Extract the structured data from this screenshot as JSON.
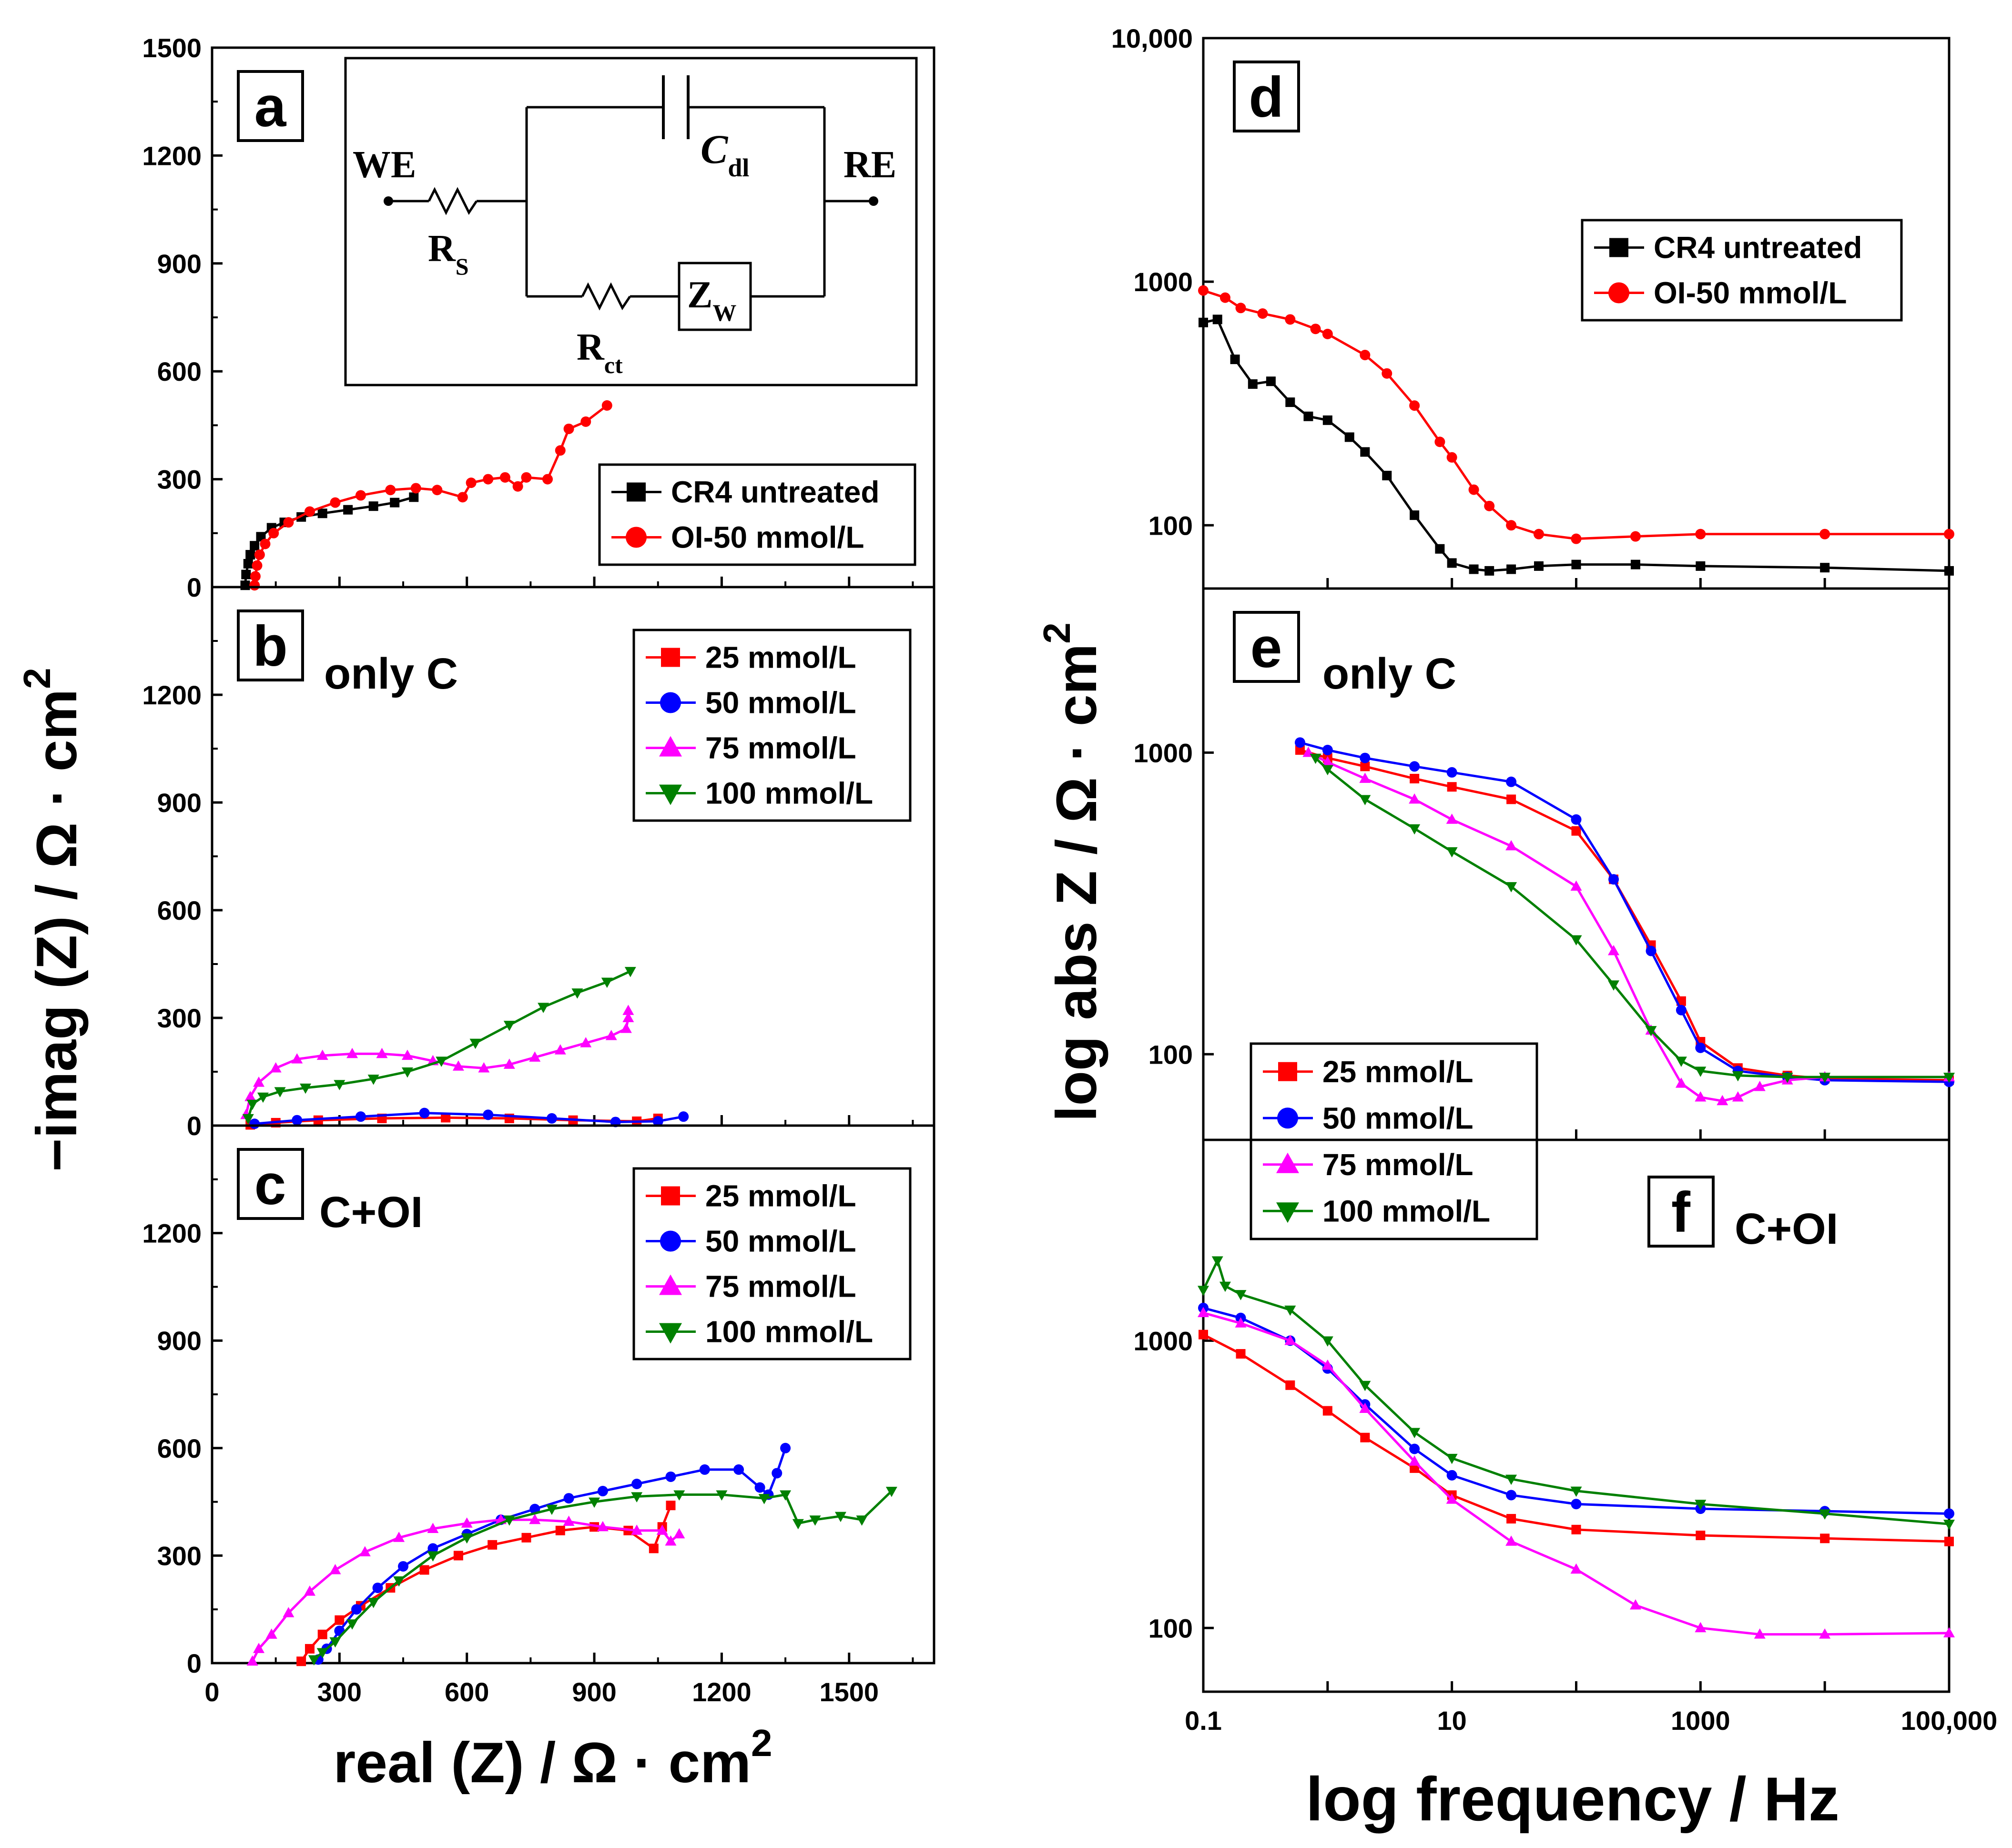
{
  "figure": {
    "left_xlabel_main": "real (Z) / Ω · cm",
    "left_xlabel_sup": "2",
    "left_ylabel_main": "−imag (Z) / Ω · cm",
    "left_ylabel_sup": "2",
    "right_xlabel": "log frequency / Hz",
    "right_ylabel_main": "log abs Z / Ω · cm",
    "right_ylabel_sup": "2"
  },
  "circuit": {
    "we": "WE",
    "re": "RE",
    "rs_main": "R",
    "rs_sub": "S",
    "cdl_main": "C",
    "cdl_sub": "dl",
    "rct_main": "R",
    "rct_sub": "ct",
    "zw_main": "Z",
    "zw_sub": "W"
  },
  "chart_data": [
    {
      "id": "a",
      "type": "scatter",
      "panel_label": "a",
      "subtitle": "",
      "xlim": [
        0,
        1700
      ],
      "ylim": [
        0,
        1500
      ],
      "yticks": [
        "0",
        "300",
        "600",
        "900",
        "1200",
        "1500"
      ],
      "legend": "right",
      "series": [
        {
          "name": "CR4 untreated",
          "color": "#000000",
          "marker": "square",
          "x": [
            78,
            80,
            85,
            90,
            100,
            115,
            140,
            170,
            210,
            260,
            320,
            380,
            430,
            475
          ],
          "y": [
            5,
            35,
            65,
            90,
            115,
            140,
            165,
            180,
            195,
            205,
            215,
            225,
            235,
            250
          ]
        },
        {
          "name": "OI-50 mmol/L",
          "color": "#ff0000",
          "marker": "circle",
          "x": [
            100,
            102,
            106,
            112,
            125,
            145,
            180,
            230,
            290,
            350,
            420,
            480,
            530,
            590,
            610,
            650,
            690,
            720,
            740,
            790,
            820,
            840,
            880,
            930
          ],
          "y": [
            5,
            30,
            60,
            90,
            120,
            150,
            180,
            210,
            235,
            255,
            270,
            275,
            270,
            250,
            290,
            300,
            305,
            280,
            305,
            300,
            380,
            440,
            460,
            505
          ]
        }
      ]
    },
    {
      "id": "b",
      "type": "scatter",
      "panel_label": "b",
      "subtitle": "only C",
      "xlim": [
        0,
        1700
      ],
      "ylim": [
        0,
        1500
      ],
      "yticks": [
        "0",
        "300",
        "600",
        "900",
        "1200"
      ],
      "legend": "right",
      "series": [
        {
          "name": "25 mmol/L",
          "color": "#ff0000",
          "marker": "square",
          "x": [
            90,
            150,
            250,
            400,
            550,
            700,
            850,
            1000,
            1050
          ],
          "y": [
            2,
            8,
            15,
            20,
            22,
            20,
            15,
            12,
            20
          ]
        },
        {
          "name": "50 mmol/L",
          "color": "#0000ff",
          "marker": "circle",
          "x": [
            100,
            200,
            350,
            500,
            650,
            800,
            950,
            1050,
            1110
          ],
          "y": [
            5,
            15,
            25,
            35,
            30,
            20,
            10,
            12,
            25
          ]
        },
        {
          "name": "75 mmol/L",
          "color": "#ff00ff",
          "marker": "triangle-up",
          "x": [
            80,
            90,
            110,
            150,
            200,
            260,
            330,
            400,
            460,
            520,
            580,
            640,
            700,
            760,
            820,
            880,
            940,
            975,
            980,
            980
          ],
          "y": [
            30,
            80,
            120,
            160,
            185,
            195,
            200,
            200,
            195,
            180,
            165,
            160,
            170,
            190,
            210,
            230,
            250,
            270,
            300,
            320
          ]
        },
        {
          "name": "100 mmol/L",
          "color": "#008000",
          "marker": "triangle-down",
          "x": [
            85,
            95,
            120,
            160,
            220,
            300,
            380,
            460,
            540,
            620,
            700,
            780,
            860,
            930,
            985
          ],
          "y": [
            20,
            60,
            80,
            95,
            105,
            115,
            130,
            150,
            180,
            230,
            280,
            330,
            370,
            400,
            430
          ]
        }
      ]
    },
    {
      "id": "c",
      "type": "scatter",
      "panel_label": "c",
      "subtitle": "C+OI",
      "xlim": [
        0,
        1700
      ],
      "ylim": [
        0,
        1500
      ],
      "yticks": [
        "0",
        "300",
        "600",
        "900",
        "1200"
      ],
      "xticks": [
        "0",
        "300",
        "600",
        "900",
        "1200",
        "1500"
      ],
      "legend": "right",
      "series": [
        {
          "name": "25 mmol/L",
          "color": "#ff0000",
          "marker": "square",
          "x": [
            210,
            230,
            260,
            300,
            350,
            420,
            500,
            580,
            660,
            740,
            820,
            900,
            980,
            1040,
            1060,
            1080
          ],
          "y": [
            5,
            40,
            80,
            120,
            160,
            210,
            260,
            300,
            330,
            350,
            370,
            380,
            370,
            320,
            380,
            440
          ]
        },
        {
          "name": "50 mmol/L",
          "color": "#0000ff",
          "marker": "circle",
          "x": [
            250,
            270,
            300,
            340,
            390,
            450,
            520,
            600,
            680,
            760,
            840,
            920,
            1000,
            1080,
            1160,
            1240,
            1290,
            1310,
            1330,
            1350
          ],
          "y": [
            10,
            40,
            90,
            150,
            210,
            270,
            320,
            360,
            400,
            430,
            460,
            480,
            500,
            520,
            540,
            540,
            490,
            470,
            530,
            600
          ]
        },
        {
          "name": "75 mmol/L",
          "color": "#ff00ff",
          "marker": "triangle-up",
          "x": [
            95,
            110,
            140,
            180,
            230,
            290,
            360,
            440,
            520,
            600,
            680,
            760,
            840,
            920,
            1000,
            1060,
            1080,
            1100
          ],
          "y": [
            5,
            40,
            80,
            140,
            200,
            260,
            310,
            350,
            375,
            390,
            400,
            400,
            395,
            380,
            370,
            370,
            340,
            360
          ]
        },
        {
          "name": "100 mmol/L",
          "color": "#008000",
          "marker": "triangle-down",
          "x": [
            240,
            260,
            290,
            330,
            380,
            440,
            520,
            600,
            700,
            800,
            900,
            1000,
            1100,
            1200,
            1300,
            1350,
            1380,
            1420,
            1480,
            1530,
            1600
          ],
          "y": [
            10,
            30,
            60,
            110,
            170,
            230,
            300,
            350,
            400,
            430,
            450,
            465,
            470,
            470,
            460,
            470,
            390,
            400,
            410,
            400,
            480
          ]
        }
      ]
    },
    {
      "id": "d",
      "type": "line",
      "panel_label": "d",
      "subtitle": "",
      "xscale": "log",
      "yscale": "log",
      "xlim": [
        0.1,
        100000
      ],
      "ylim": [
        55,
        10000
      ],
      "ytick_values": [
        100,
        1000,
        10000
      ],
      "ytick_labels": [
        "100",
        "1000",
        "10,000"
      ],
      "legend": "top-right",
      "series": [
        {
          "name": "CR4 untreated",
          "color": "#000000",
          "marker": "square",
          "x": [
            0.1,
            0.13,
            0.18,
            0.25,
            0.35,
            0.5,
            0.7,
            1,
            1.5,
            2,
            3,
            5,
            8,
            10,
            15,
            20,
            30,
            50,
            100,
            300,
            1000,
            10000,
            100000
          ],
          "y": [
            680,
            700,
            480,
            380,
            390,
            320,
            280,
            270,
            230,
            200,
            160,
            110,
            80,
            70,
            66,
            65,
            66,
            68,
            69,
            69,
            68,
            67,
            65
          ]
        },
        {
          "name": "OI-50 mmol/L",
          "color": "#ff0000",
          "marker": "circle",
          "x": [
            0.1,
            0.15,
            0.2,
            0.3,
            0.5,
            0.8,
            1,
            2,
            3,
            5,
            8,
            10,
            15,
            20,
            30,
            50,
            100,
            300,
            1000,
            10000,
            100000
          ],
          "y": [
            920,
            860,
            780,
            740,
            700,
            640,
            610,
            500,
            420,
            310,
            220,
            190,
            140,
            120,
            100,
            92,
            88,
            90,
            92,
            92,
            92
          ]
        }
      ]
    },
    {
      "id": "e",
      "type": "line",
      "panel_label": "e",
      "subtitle": "only C",
      "xscale": "log",
      "yscale": "log",
      "xlim": [
        0.1,
        100000
      ],
      "ylim": [
        52,
        3500
      ],
      "ytick_values": [
        100,
        1000
      ],
      "ytick_labels": [
        "100",
        "1000"
      ],
      "legend": "bottom-left",
      "series": [
        {
          "name": "25 mmol/L",
          "color": "#ff0000",
          "marker": "square",
          "x": [
            0.6,
            1,
            2,
            5,
            10,
            30,
            100,
            200,
            400,
            700,
            1000,
            2000,
            5000,
            10000,
            100000
          ],
          "y": [
            1020,
            960,
            900,
            820,
            770,
            700,
            550,
            380,
            230,
            150,
            110,
            90,
            85,
            83,
            82
          ]
        },
        {
          "name": "50 mmol/L",
          "color": "#0000ff",
          "marker": "circle",
          "x": [
            0.6,
            1,
            2,
            5,
            10,
            30,
            100,
            200,
            400,
            700,
            1000,
            2000,
            5000,
            10000,
            100000
          ],
          "y": [
            1080,
            1020,
            960,
            900,
            860,
            800,
            600,
            380,
            220,
            140,
            105,
            88,
            84,
            82,
            81
          ]
        },
        {
          "name": "75 mmol/L",
          "color": "#ff00ff",
          "marker": "triangle-up",
          "x": [
            0.7,
            1,
            2,
            5,
            10,
            30,
            100,
            200,
            400,
            700,
            1000,
            1500,
            2000,
            3000,
            5000,
            10000,
            100000
          ],
          "y": [
            1000,
            930,
            820,
            700,
            600,
            490,
            360,
            220,
            120,
            80,
            72,
            70,
            72,
            78,
            82,
            84,
            84
          ]
        },
        {
          "name": "100 mmol/L",
          "color": "#008000",
          "marker": "triangle-down",
          "x": [
            0.8,
            1,
            2,
            5,
            10,
            30,
            100,
            200,
            400,
            700,
            1000,
            2000,
            5000,
            10000,
            100000
          ],
          "y": [
            960,
            880,
            700,
            560,
            470,
            360,
            240,
            170,
            120,
            95,
            88,
            85,
            84,
            84,
            84
          ]
        }
      ]
    },
    {
      "id": "f",
      "type": "line",
      "panel_label": "f",
      "subtitle": "C+OI",
      "xscale": "log",
      "yscale": "log",
      "xlim": [
        0.1,
        100000
      ],
      "ylim": [
        60,
        5000
      ],
      "ytick_values": [
        100,
        1000
      ],
      "ytick_labels": [
        "100",
        "1000"
      ],
      "xtick_values": [
        0.1,
        10,
        1000,
        100000
      ],
      "xtick_labels": [
        "0.1",
        "10",
        "1000",
        "100,000"
      ],
      "legend": "none",
      "series": [
        {
          "name": "25 mmol/L",
          "color": "#ff0000",
          "marker": "square",
          "x": [
            0.1,
            0.2,
            0.5,
            1,
            2,
            5,
            10,
            30,
            100,
            1000,
            10000,
            100000
          ],
          "y": [
            1050,
            900,
            700,
            570,
            460,
            360,
            290,
            240,
            220,
            210,
            205,
            200
          ]
        },
        {
          "name": "50 mmol/L",
          "color": "#0000ff",
          "marker": "circle",
          "x": [
            0.1,
            0.2,
            0.5,
            1,
            2,
            5,
            10,
            30,
            100,
            1000,
            10000,
            100000
          ],
          "y": [
            1300,
            1200,
            1000,
            800,
            600,
            420,
            340,
            290,
            270,
            260,
            255,
            250
          ]
        },
        {
          "name": "75 mmol/L",
          "color": "#ff00ff",
          "marker": "triangle-up",
          "x": [
            0.1,
            0.2,
            0.5,
            1,
            2,
            5,
            10,
            30,
            100,
            300,
            1000,
            3000,
            10000,
            100000
          ],
          "y": [
            1250,
            1150,
            1000,
            820,
            580,
            380,
            280,
            200,
            160,
            120,
            100,
            95,
            95,
            96
          ]
        },
        {
          "name": "100 mmol/L",
          "color": "#008000",
          "marker": "triangle-down",
          "x": [
            0.1,
            0.13,
            0.15,
            0.2,
            0.5,
            1,
            2,
            5,
            10,
            30,
            100,
            1000,
            10000,
            100000
          ],
          "y": [
            1500,
            1900,
            1550,
            1450,
            1280,
            1000,
            700,
            480,
            390,
            330,
            300,
            270,
            250,
            230
          ]
        }
      ]
    }
  ]
}
